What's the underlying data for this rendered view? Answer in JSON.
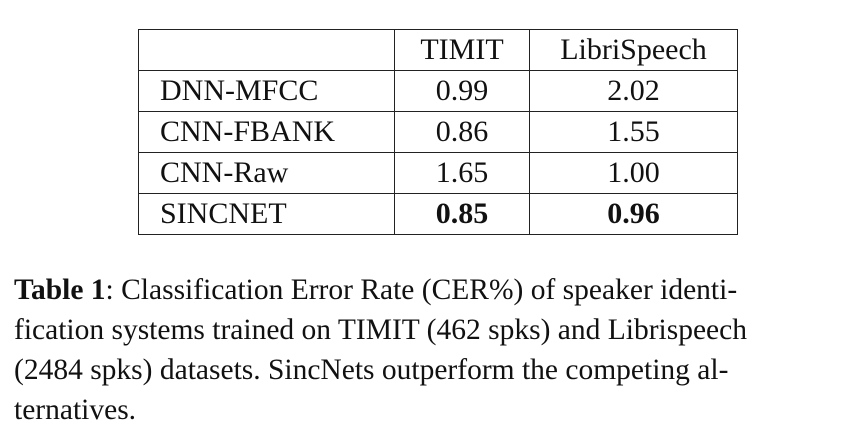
{
  "table": {
    "header": [
      "",
      "TIMIT",
      "LibriSpeech"
    ],
    "rows": [
      {
        "model": "DNN-MFCC",
        "timit": "0.99",
        "librispeech": "2.02"
      },
      {
        "model": "CNN-FBANK",
        "timit": "0.86",
        "librispeech": "1.55"
      },
      {
        "model": "CNN-Raw",
        "timit": "1.65",
        "librispeech": "1.00"
      },
      {
        "model": "SINCNET",
        "timit": "0.85",
        "librispeech": "0.96"
      }
    ]
  },
  "caption": {
    "label": "Table 1",
    "text": ": Classification Error Rate (CER%) of speaker identi-fication systems trained on TIMIT (462 spks) and Librispeech (2484 spks) datasets. SincNets outperform the competing al-ternatives.",
    "line1": ": Classification Error Rate (CER%) of speaker identi-",
    "line2": "fication systems trained on TIMIT (462 spks) and Librispeech",
    "line3": "(2484 spks) datasets.  SincNets outperform the competing al-",
    "line4": "ternatives."
  }
}
